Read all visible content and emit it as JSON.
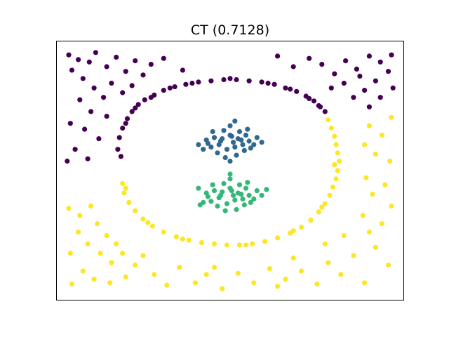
{
  "chart_data": {
    "type": "scatter",
    "title": "CT (0.7128)",
    "xlabel": "",
    "ylabel": "",
    "xlim": [
      -1.1,
      1.1
    ],
    "ylim": [
      -1.1,
      1.1
    ],
    "grid": false,
    "axis_ticks": false,
    "legend": "none",
    "colors": {
      "purple": "#440154",
      "blue": "#31688e",
      "green": "#35b779",
      "yellow": "#fde725"
    },
    "series": [
      {
        "color": "#440154",
        "points": [
          [
            -0.7,
            0.28
          ],
          [
            -0.68,
            0.36
          ],
          [
            -0.65,
            0.44
          ],
          [
            -0.62,
            0.5
          ],
          [
            -0.58,
            0.56
          ],
          [
            -0.54,
            0.6
          ],
          [
            -0.48,
            0.64
          ],
          [
            -0.42,
            0.68
          ],
          [
            -0.35,
            0.71
          ],
          [
            -0.28,
            0.73
          ],
          [
            -0.2,
            0.75
          ],
          [
            -0.12,
            0.76
          ],
          [
            -0.04,
            0.77
          ],
          [
            0.04,
            0.77
          ],
          [
            0.12,
            0.76
          ],
          [
            0.2,
            0.75
          ],
          [
            0.28,
            0.73
          ],
          [
            0.35,
            0.7
          ],
          [
            0.42,
            0.67
          ],
          [
            0.48,
            0.63
          ],
          [
            0.53,
            0.59
          ],
          [
            0.57,
            0.54
          ],
          [
            0.6,
            0.5
          ],
          [
            -0.71,
            0.18
          ],
          [
            -0.69,
            0.12
          ],
          [
            -0.66,
            0.4
          ],
          [
            -0.6,
            0.53
          ],
          [
            -0.5,
            0.62
          ],
          [
            -0.38,
            0.7
          ],
          [
            -0.24,
            0.74
          ],
          [
            0.0,
            0.78
          ],
          [
            0.24,
            0.74
          ],
          [
            0.38,
            0.69
          ],
          [
            0.5,
            0.61
          ],
          [
            0.56,
            0.55
          ],
          [
            -1.02,
            0.98
          ],
          [
            -0.96,
            0.94
          ],
          [
            -0.89,
            0.92
          ],
          [
            -0.85,
            1.0
          ],
          [
            -0.78,
            0.88
          ],
          [
            -0.72,
            0.96
          ],
          [
            -0.66,
            0.84
          ],
          [
            -0.6,
            0.93
          ],
          [
            -0.55,
            0.81
          ],
          [
            -1.0,
            0.85
          ],
          [
            -0.93,
            0.78
          ],
          [
            -0.86,
            0.7
          ],
          [
            -0.8,
            0.62
          ],
          [
            -0.95,
            0.6
          ],
          [
            -0.88,
            0.5
          ],
          [
            -1.01,
            0.4
          ],
          [
            -0.92,
            0.35
          ],
          [
            -0.83,
            0.27
          ],
          [
            -0.98,
            0.18
          ],
          [
            -0.9,
            0.1
          ],
          [
            -0.75,
            0.74
          ],
          [
            -0.68,
            0.66
          ],
          [
            -0.62,
            0.72
          ],
          [
            -0.5,
            0.9
          ],
          [
            -0.42,
            0.95
          ],
          [
            -0.3,
            0.85
          ],
          [
            -0.78,
            0.46
          ],
          [
            -1.03,
            0.08
          ],
          [
            1.02,
            0.98
          ],
          [
            0.95,
            0.92
          ],
          [
            0.88,
            0.97
          ],
          [
            0.8,
            0.86
          ],
          [
            0.73,
            0.93
          ],
          [
            0.66,
            0.82
          ],
          [
            0.58,
            0.9
          ],
          [
            0.5,
            0.95
          ],
          [
            0.4,
            0.88
          ],
          [
            0.3,
            0.97
          ],
          [
            1.0,
            0.84
          ],
          [
            0.92,
            0.76
          ],
          [
            0.85,
            0.68
          ],
          [
            0.78,
            0.62
          ],
          [
            0.95,
            0.62
          ],
          [
            0.88,
            0.54
          ],
          [
            0.72,
            0.74
          ],
          [
            0.64,
            0.7
          ],
          [
            1.03,
            0.7
          ],
          [
            0.82,
            0.8
          ]
        ]
      },
      {
        "color": "#31688e",
        "points": [
          [
            -0.05,
            0.27
          ],
          [
            0.0,
            0.3
          ],
          [
            0.05,
            0.27
          ],
          [
            0.08,
            0.22
          ],
          [
            0.03,
            0.2
          ],
          [
            -0.02,
            0.18
          ],
          [
            -0.07,
            0.22
          ],
          [
            -0.1,
            0.28
          ],
          [
            0.1,
            0.3
          ],
          [
            0.12,
            0.25
          ],
          [
            -0.12,
            0.2
          ],
          [
            0.06,
            0.33
          ],
          [
            -0.04,
            0.34
          ],
          [
            0.02,
            0.24
          ],
          [
            -0.08,
            0.15
          ],
          [
            0.09,
            0.17
          ],
          [
            0.15,
            0.22
          ],
          [
            -0.15,
            0.26
          ],
          [
            0.0,
            0.38
          ],
          [
            0.04,
            0.13
          ],
          [
            -0.03,
            0.11
          ],
          [
            0.11,
            0.35
          ],
          [
            -0.11,
            0.33
          ],
          [
            0.17,
            0.28
          ],
          [
            -0.17,
            0.18
          ],
          [
            0.01,
            0.29
          ],
          [
            -0.06,
            0.25
          ],
          [
            0.07,
            0.26
          ],
          [
            0.13,
            0.19
          ],
          [
            -0.14,
            0.23
          ],
          [
            0.2,
            0.24
          ],
          [
            -0.2,
            0.22
          ],
          [
            0.03,
            0.42
          ],
          [
            0.0,
            0.08
          ]
        ]
      },
      {
        "color": "#35b779",
        "points": [
          [
            -0.05,
            -0.18
          ],
          [
            0.0,
            -0.15
          ],
          [
            0.05,
            -0.19
          ],
          [
            0.08,
            -0.24
          ],
          [
            0.03,
            -0.25
          ],
          [
            -0.02,
            -0.28
          ],
          [
            -0.07,
            -0.23
          ],
          [
            -0.1,
            -0.17
          ],
          [
            0.1,
            -0.15
          ],
          [
            0.12,
            -0.21
          ],
          [
            -0.12,
            -0.26
          ],
          [
            0.06,
            -0.12
          ],
          [
            -0.04,
            -0.11
          ],
          [
            0.02,
            -0.21
          ],
          [
            -0.08,
            -0.3
          ],
          [
            0.09,
            -0.29
          ],
          [
            0.15,
            -0.24
          ],
          [
            -0.15,
            -0.19
          ],
          [
            0.0,
            -0.07
          ],
          [
            0.04,
            -0.33
          ],
          [
            -0.03,
            -0.34
          ],
          [
            0.11,
            -0.1
          ],
          [
            -0.11,
            -0.12
          ],
          [
            0.17,
            -0.17
          ],
          [
            -0.17,
            -0.27
          ],
          [
            0.01,
            -0.17
          ],
          [
            -0.06,
            -0.21
          ],
          [
            0.07,
            -0.2
          ],
          [
            0.13,
            -0.27
          ],
          [
            -0.14,
            -0.22
          ],
          [
            0.2,
            -0.21
          ],
          [
            -0.2,
            -0.15
          ],
          [
            0.23,
            -0.16
          ],
          [
            -0.19,
            -0.29
          ],
          [
            0.0,
            -0.03
          ]
        ]
      },
      {
        "color": "#fde725",
        "points": [
          [
            0.62,
            0.43
          ],
          [
            0.64,
            0.36
          ],
          [
            0.66,
            0.29
          ],
          [
            0.67,
            0.22
          ],
          [
            0.68,
            0.15
          ],
          [
            0.69,
            0.08
          ],
          [
            0.68,
            0.0
          ],
          [
            0.67,
            -0.07
          ],
          [
            0.65,
            -0.14
          ],
          [
            0.63,
            -0.21
          ],
          [
            0.6,
            -0.28
          ],
          [
            0.56,
            -0.35
          ],
          [
            0.51,
            -0.42
          ],
          [
            0.45,
            -0.48
          ],
          [
            0.38,
            -0.53
          ],
          [
            0.3,
            -0.57
          ],
          [
            0.22,
            -0.6
          ],
          [
            0.14,
            -0.62
          ],
          [
            0.06,
            -0.63
          ],
          [
            -0.02,
            -0.63
          ],
          [
            -0.1,
            -0.62
          ],
          [
            -0.18,
            -0.61
          ],
          [
            -0.26,
            -0.59
          ],
          [
            -0.34,
            -0.56
          ],
          [
            -0.42,
            -0.52
          ],
          [
            -0.49,
            -0.47
          ],
          [
            -0.55,
            -0.41
          ],
          [
            -0.6,
            -0.34
          ],
          [
            -0.64,
            -0.27
          ],
          [
            -0.67,
            -0.19
          ],
          [
            -0.68,
            -0.11
          ],
          [
            -0.66,
            -0.15
          ],
          [
            0.58,
            -0.31
          ],
          [
            0.4,
            -0.51
          ],
          [
            0.1,
            -0.63
          ],
          [
            -0.3,
            -0.58
          ],
          [
            -0.52,
            -0.44
          ],
          [
            0.66,
            0.05
          ],
          [
            -1.02,
            -0.32
          ],
          [
            -0.95,
            -0.38
          ],
          [
            -0.88,
            -0.3
          ],
          [
            -0.84,
            -0.45
          ],
          [
            -0.96,
            -0.52
          ],
          [
            -0.9,
            -0.62
          ],
          [
            -1.01,
            -0.7
          ],
          [
            -0.82,
            -0.7
          ],
          [
            -0.75,
            -0.78
          ],
          [
            -0.68,
            -0.7
          ],
          [
            -0.6,
            -0.8
          ],
          [
            -0.93,
            -0.85
          ],
          [
            -0.86,
            -0.92
          ],
          [
            -1.0,
            -0.96
          ],
          [
            -0.76,
            -0.95
          ],
          [
            -0.66,
            -0.9
          ],
          [
            -0.55,
            -0.72
          ],
          [
            -0.48,
            -0.88
          ],
          [
            -0.4,
            -0.97
          ],
          [
            -0.32,
            -0.82
          ],
          [
            -0.22,
            -0.95
          ],
          [
            -0.15,
            -0.88
          ],
          [
            -0.05,
            -1.0
          ],
          [
            0.05,
            -0.87
          ],
          [
            0.15,
            -0.95
          ],
          [
            0.25,
            -0.83
          ],
          [
            0.35,
            -0.92
          ],
          [
            0.45,
            -0.85
          ],
          [
            0.55,
            -0.96
          ],
          [
            0.62,
            -0.78
          ],
          [
            0.7,
            -0.88
          ],
          [
            0.78,
            -0.72
          ],
          [
            0.85,
            -0.95
          ],
          [
            0.92,
            -0.65
          ],
          [
            1.0,
            -0.8
          ],
          [
            0.88,
            -0.52
          ],
          [
            0.96,
            -0.45
          ],
          [
            1.02,
            -0.3
          ],
          [
            0.84,
            -0.38
          ],
          [
            0.9,
            -0.2
          ],
          [
            0.98,
            -0.12
          ],
          [
            0.86,
            -0.06
          ],
          [
            1.01,
            0.08
          ],
          [
            0.92,
            0.14
          ],
          [
            0.85,
            0.22
          ],
          [
            0.96,
            0.3
          ],
          [
            0.88,
            0.38
          ],
          [
            1.02,
            0.45
          ],
          [
            0.6,
            -0.62
          ],
          [
            0.72,
            -0.55
          ],
          [
            -0.78,
            -0.55
          ],
          [
            -0.72,
            -0.62
          ],
          [
            0.4,
            -0.74
          ],
          [
            0.3,
            -0.98
          ],
          [
            -0.1,
            -0.82
          ]
        ]
      }
    ]
  }
}
